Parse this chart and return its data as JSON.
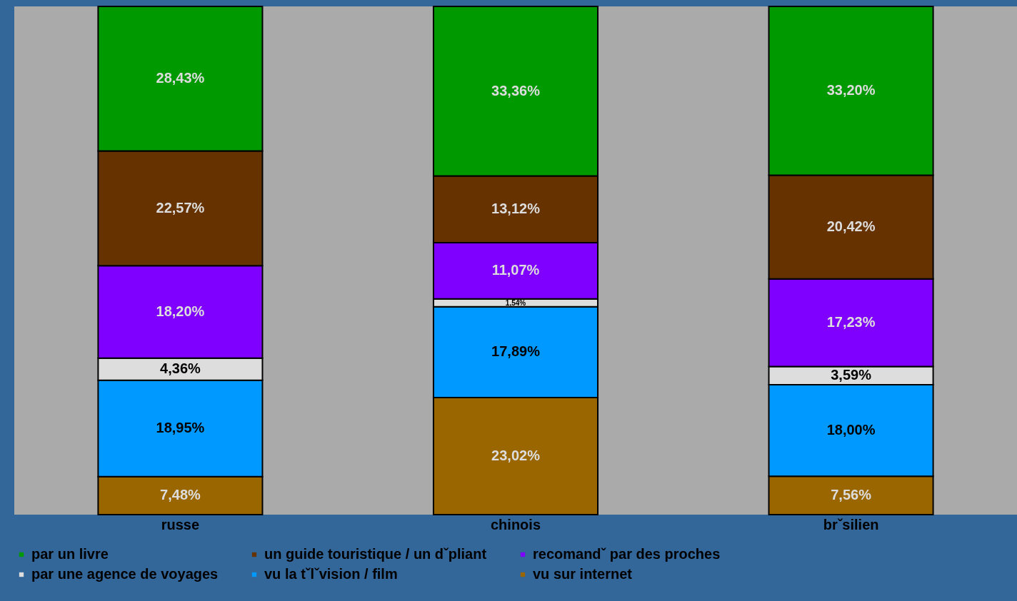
{
  "chart_data": {
    "type": "bar",
    "stacked": true,
    "categories": [
      "russe",
      "chinois",
      "brˇsilien"
    ],
    "ylim": [
      0,
      100
    ],
    "tick_labels": "x",
    "legend": "bottom",
    "series": [
      {
        "name": "vu sur internet",
        "color": "#996600",
        "values": [
          7.48,
          23.02,
          7.56
        ],
        "value_labels": [
          "7,48%",
          "23,02%",
          "7,56%"
        ]
      },
      {
        "name": "vu la tˇlˇvision / film",
        "color": "#0099ff",
        "values": [
          18.95,
          17.89,
          18.0
        ],
        "value_labels": [
          "18,95%",
          "17,89%",
          "18,00%"
        ]
      },
      {
        "name": "par une agence de voyages",
        "color": "#dddddd",
        "values": [
          4.36,
          1.54,
          3.59
        ],
        "value_labels": [
          "4,36%",
          "1,54%",
          "3,59%"
        ]
      },
      {
        "name": "recomandˇ par des proches",
        "color": "#7f00ff",
        "values": [
          18.2,
          11.07,
          17.23
        ],
        "value_labels": [
          "18,20%",
          "11,07%",
          "17,23%"
        ]
      },
      {
        "name": "un guide touristique / un dˇpliant",
        "color": "#663300",
        "values": [
          22.57,
          13.12,
          20.42
        ],
        "value_labels": [
          "22,57%",
          "13,12%",
          "20,42%"
        ]
      },
      {
        "name": "par un livre",
        "color": "#009900",
        "values": [
          28.43,
          33.36,
          33.2
        ],
        "value_labels": [
          "28,43%",
          "33,36%",
          "33,20%"
        ]
      }
    ]
  }
}
